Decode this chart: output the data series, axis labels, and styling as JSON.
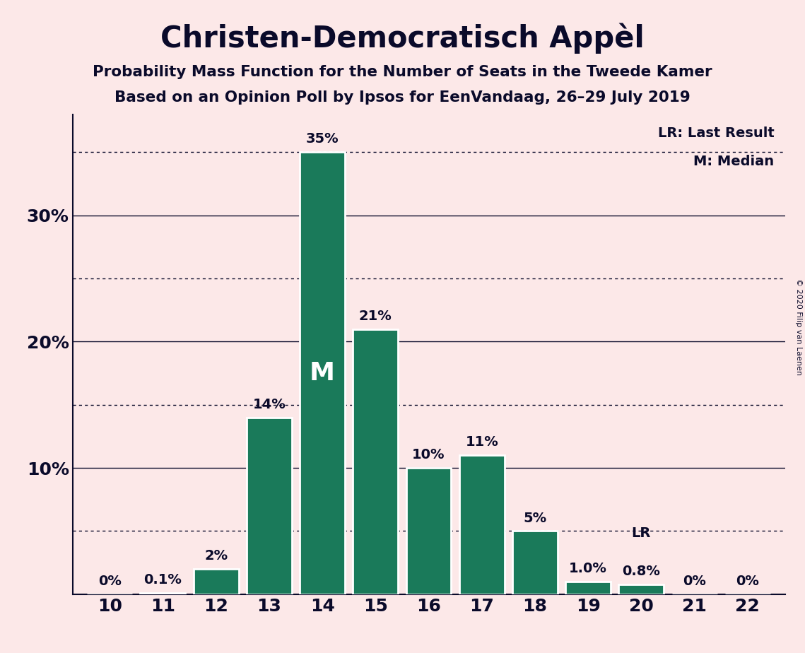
{
  "title": "Christen-Democratisch Appèl",
  "subtitle1": "Probability Mass Function for the Number of Seats in the Tweede Kamer",
  "subtitle2": "Based on an Opinion Poll by Ipsos for EenVandaag, 26–29 July 2019",
  "copyright": "© 2020 Filip van Laenen",
  "seats": [
    10,
    11,
    12,
    13,
    14,
    15,
    16,
    17,
    18,
    19,
    20,
    21,
    22
  ],
  "probabilities": [
    0.0,
    0.1,
    2.0,
    14.0,
    35.0,
    21.0,
    10.0,
    11.0,
    5.0,
    1.0,
    0.8,
    0.0,
    0.0
  ],
  "bar_labels": [
    "0%",
    "0.1%",
    "2%",
    "14%",
    "35%",
    "21%",
    "10%",
    "11%",
    "5%",
    "1.0%",
    "0.8%",
    "0%",
    "0%"
  ],
  "bar_color": "#1a7a5a",
  "background_color": "#fce8e8",
  "text_color": "#0a0a2a",
  "median_seat": 14,
  "lr_seat": 20,
  "yticks": [
    10,
    20,
    30
  ],
  "ytick_labels": [
    "10%",
    "20%",
    "30%"
  ],
  "solid_lines": [
    10,
    20,
    30
  ],
  "dotted_lines": [
    5,
    15,
    25,
    35
  ],
  "ylim": [
    0,
    38
  ],
  "legend_lr": "LR: Last Result",
  "legend_m": "M: Median"
}
